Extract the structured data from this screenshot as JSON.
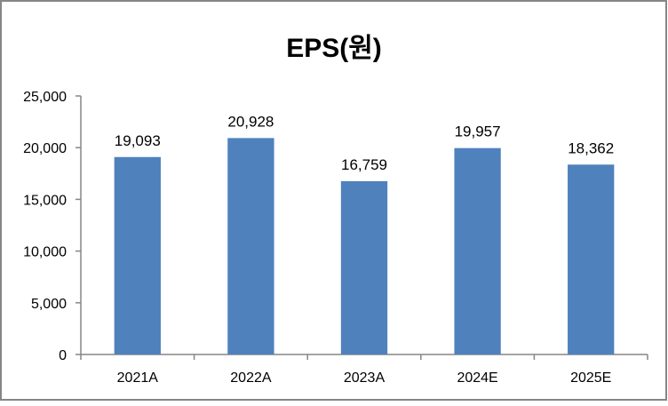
{
  "chart_data": {
    "type": "bar",
    "title": "EPS(원)",
    "xlabel": "",
    "ylabel": "",
    "categories": [
      "2021A",
      "2022A",
      "2023A",
      "2024E",
      "2025E"
    ],
    "values": [
      19093,
      20928,
      16759,
      19957,
      18362
    ],
    "data_labels": [
      "19,093",
      "20,928",
      "16,759",
      "19,957",
      "18,362"
    ],
    "y_ticks": [
      0,
      5000,
      10000,
      15000,
      20000,
      25000
    ],
    "y_tick_labels": [
      "0",
      "5,000",
      "10,000",
      "15,000",
      "20,000",
      "25,000"
    ],
    "ylim": [
      0,
      25000
    ],
    "grid": false,
    "legend": "none",
    "bar_color": "#4F81BD",
    "border_color": "#868686"
  }
}
